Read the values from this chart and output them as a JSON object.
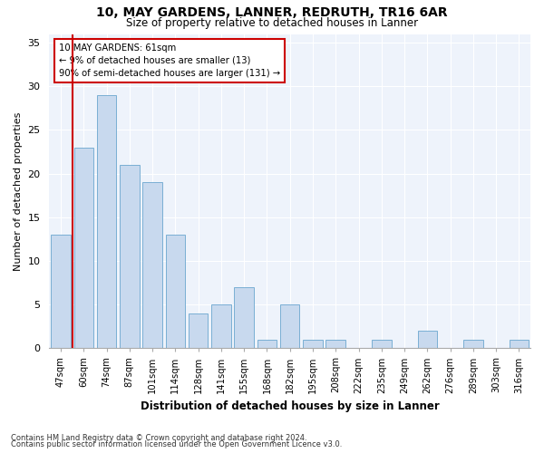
{
  "title1": "10, MAY GARDENS, LANNER, REDRUTH, TR16 6AR",
  "title2": "Size of property relative to detached houses in Lanner",
  "xlabel": "Distribution of detached houses by size in Lanner",
  "ylabel": "Number of detached properties",
  "categories": [
    "47sqm",
    "60sqm",
    "74sqm",
    "87sqm",
    "101sqm",
    "114sqm",
    "128sqm",
    "141sqm",
    "155sqm",
    "168sqm",
    "182sqm",
    "195sqm",
    "208sqm",
    "222sqm",
    "235sqm",
    "249sqm",
    "262sqm",
    "276sqm",
    "289sqm",
    "303sqm",
    "316sqm"
  ],
  "values": [
    13,
    23,
    29,
    21,
    19,
    13,
    4,
    5,
    7,
    1,
    5,
    1,
    1,
    0,
    1,
    0,
    2,
    0,
    1,
    0,
    1
  ],
  "bar_color": "#c8d9ee",
  "bar_edge_color": "#7aafd4",
  "annotation_text_line1": "10 MAY GARDENS: 61sqm",
  "annotation_text_line2": "← 9% of detached houses are smaller (13)",
  "annotation_text_line3": "90% of semi-detached houses are larger (131) →",
  "ylim": [
    0,
    36
  ],
  "yticks": [
    0,
    5,
    10,
    15,
    20,
    25,
    30,
    35
  ],
  "footer1": "Contains HM Land Registry data © Crown copyright and database right 2024.",
  "footer2": "Contains public sector information licensed under the Open Government Licence v3.0.",
  "bg_color": "#ffffff",
  "plot_bg_color": "#eef3fb",
  "grid_color": "#ffffff",
  "red_color": "#cc0000"
}
